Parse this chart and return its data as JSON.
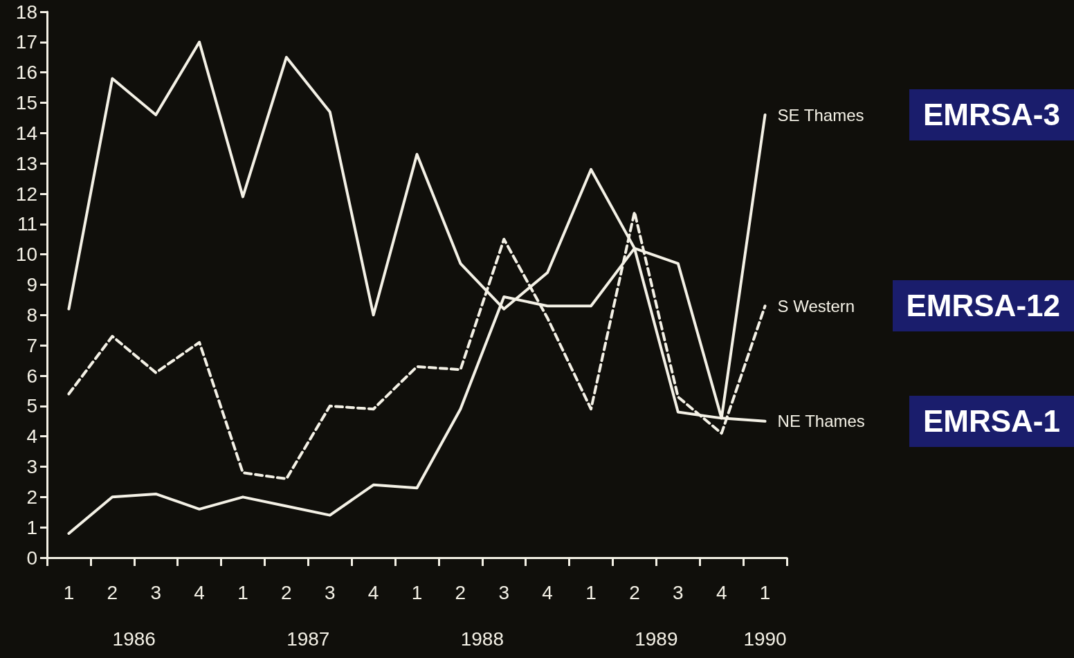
{
  "chart_data": {
    "type": "line",
    "categories": [
      "1",
      "2",
      "3",
      "4",
      "1",
      "2",
      "3",
      "4",
      "1",
      "2",
      "3",
      "4",
      "1",
      "2",
      "3",
      "4",
      "1"
    ],
    "series": [
      {
        "name": "SE Thames",
        "color": "#f4f1e6",
        "values": [
          0.8,
          2.0,
          2.1,
          1.6,
          2.0,
          1.7,
          1.4,
          2.4,
          2.3,
          4.9,
          8.6,
          8.3,
          8.3,
          10.2,
          9.7,
          4.6,
          14.6
        ]
      },
      {
        "name": "S Western",
        "color": "#f4f1e6",
        "line_style": "dashed",
        "values": [
          5.4,
          7.3,
          6.1,
          7.1,
          2.8,
          2.6,
          5.0,
          4.9,
          6.3,
          6.2,
          10.5,
          7.9,
          4.9,
          11.4,
          5.3,
          4.1,
          8.3
        ]
      },
      {
        "name": "NE Thames",
        "color": "#f4f1e6",
        "values": [
          8.2,
          15.8,
          14.6,
          17.0,
          11.9,
          16.5,
          14.7,
          8.0,
          13.3,
          9.7,
          8.2,
          9.4,
          12.8,
          10.2,
          4.8,
          4.6,
          4.5
        ]
      }
    ],
    "ylim": [
      0,
      18
    ],
    "yticks": [
      0,
      1,
      2,
      3,
      4,
      5,
      6,
      7,
      8,
      9,
      10,
      11,
      12,
      13,
      14,
      15,
      16,
      17,
      18
    ],
    "annotations": [
      "1986",
      "1987",
      "1988",
      "1989",
      "1990",
      "EMRSA-3",
      "EMRSA-12",
      "EMRSA-1"
    ],
    "grid": false,
    "legend": false,
    "marker": "none",
    "line_style": "solid"
  }
}
